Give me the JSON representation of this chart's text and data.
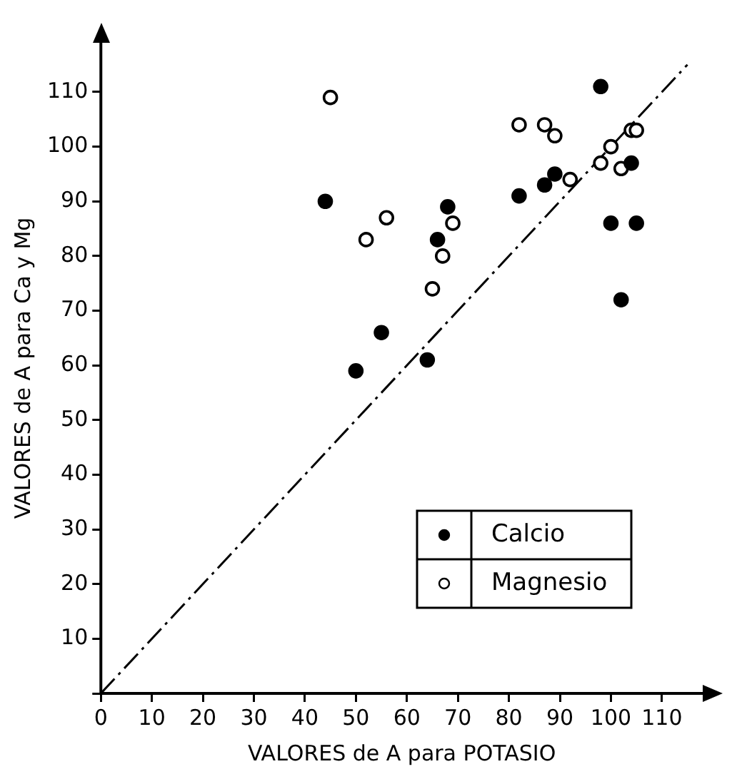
{
  "chart_data": {
    "type": "scatter",
    "xlabel": "VALORES de A para POTASIO",
    "ylabel": "VALORES de A para Ca y Mg",
    "xlim": [
      0,
      118
    ],
    "ylim": [
      0,
      119
    ],
    "xticks": [
      0,
      10,
      20,
      30,
      40,
      50,
      60,
      70,
      80,
      90,
      100,
      110
    ],
    "yticks": [
      {
        "value": 0,
        "label": null
      },
      10,
      20,
      30,
      40,
      50,
      60,
      70,
      80,
      90,
      100,
      110
    ],
    "grid": false,
    "legend": "bottom right",
    "marker": "circle",
    "series": [
      {
        "name": "Calcio",
        "color": "#000000",
        "x": [
          44,
          50,
          55,
          64,
          66,
          68,
          82,
          87,
          89,
          98,
          100,
          102,
          104,
          105
        ],
        "values": [
          90,
          59,
          66,
          61,
          83,
          89,
          91,
          93,
          95,
          111,
          86,
          72,
          97,
          86
        ]
      },
      {
        "name": "Magnesio",
        "color": "#ffffff",
        "x": [
          45,
          52,
          56,
          65,
          67,
          69,
          82,
          87,
          89,
          92,
          98,
          100,
          102,
          104,
          105
        ],
        "values": [
          109,
          83,
          87,
          74,
          80,
          86,
          104,
          104,
          102,
          94,
          97,
          100,
          96,
          103,
          103
        ]
      },
      {
        "type": "line",
        "color": "#000000",
        "line_style": "dashed",
        "marker": "none",
        "x": [
          0,
          115
        ],
        "values": [
          0,
          115
        ]
      }
    ]
  }
}
